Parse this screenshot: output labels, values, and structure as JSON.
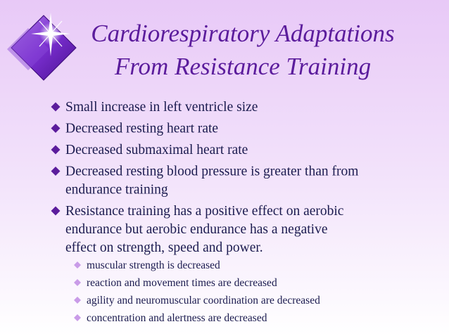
{
  "title": {
    "lines": [
      "Cardiorespiratory Adaptations",
      "From Resistance Training"
    ]
  },
  "bullets": [
    {
      "lines": [
        "Small increase in left ventricle size"
      ]
    },
    {
      "lines": [
        "Decreased resting heart rate"
      ]
    },
    {
      "lines": [
        "Decreased submaximal heart rate"
      ]
    },
    {
      "lines": [
        "Decreased resting blood pressure is greater than from",
        "endurance training"
      ]
    },
    {
      "lines": [
        "Resistance training has a positive effect on aerobic",
        "endurance but aerobic endurance has a negative",
        "effect on strength, speed and power."
      ]
    }
  ],
  "sub_bullets": [
    "muscular strength is decreased",
    "reaction and movement times are decreased",
    "agility and neuromuscular coordination are decreased",
    "concentration and alertness are decreased"
  ]
}
